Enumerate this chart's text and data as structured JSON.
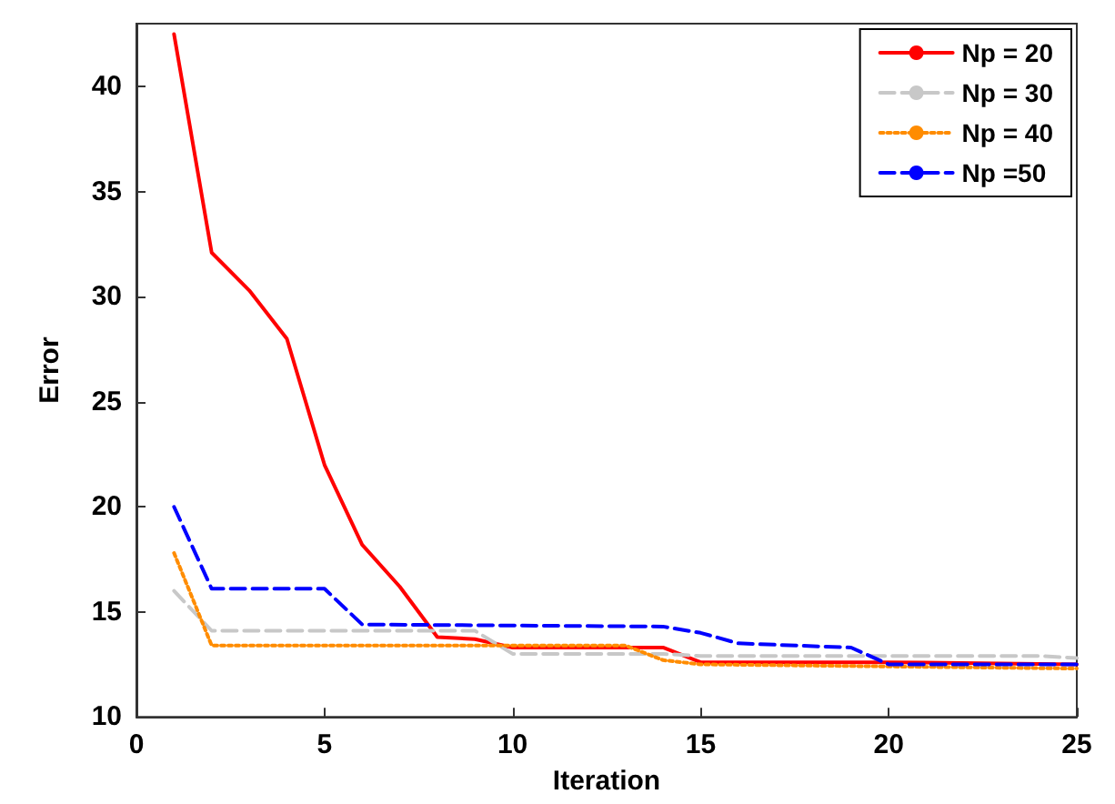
{
  "chart_data": {
    "type": "line",
    "xlabel": "Iteration",
    "ylabel": "Error",
    "xlim": [
      0,
      25
    ],
    "xticks": [
      0,
      5,
      10,
      15,
      20,
      25
    ],
    "ylim": [
      10,
      43
    ],
    "yticks": [
      10,
      15,
      20,
      25,
      30,
      35,
      40
    ],
    "grid": false,
    "legend": "top right",
    "marker": "none",
    "series": [
      {
        "name": "Np = 20",
        "color": "#ff0000",
        "line_style": "solid",
        "x": [
          1,
          2,
          3,
          4,
          5,
          6,
          7,
          8,
          9,
          10,
          14,
          15,
          20,
          25
        ],
        "values": [
          42.5,
          32.1,
          30.3,
          28,
          22,
          18.2,
          16.2,
          13.8,
          13.7,
          13.3,
          13.3,
          12.6,
          12.6,
          12.5
        ]
      },
      {
        "name": "Np = 30",
        "color": "#c8c8c8",
        "line_style": "dashed",
        "x": [
          1,
          2,
          9,
          10,
          14,
          15,
          24,
          25
        ],
        "values": [
          16,
          14.1,
          14.1,
          13.0,
          13.0,
          12.9,
          12.9,
          12.8
        ]
      },
      {
        "name": "Np = 40",
        "color": "#ff8c00",
        "line_style": "dotted",
        "x": [
          1,
          2,
          13,
          14,
          15,
          25
        ],
        "values": [
          17.8,
          13.4,
          13.4,
          12.7,
          12.5,
          12.3
        ]
      },
      {
        "name": "Np =50",
        "color": "#0000ff",
        "line_style": "dashed",
        "x": [
          1,
          2,
          5,
          6,
          14,
          15,
          16,
          19,
          20,
          25
        ],
        "values": [
          20,
          16.1,
          16.1,
          14.4,
          14.3,
          14.0,
          13.5,
          13.3,
          12.5,
          12.5
        ]
      }
    ]
  }
}
